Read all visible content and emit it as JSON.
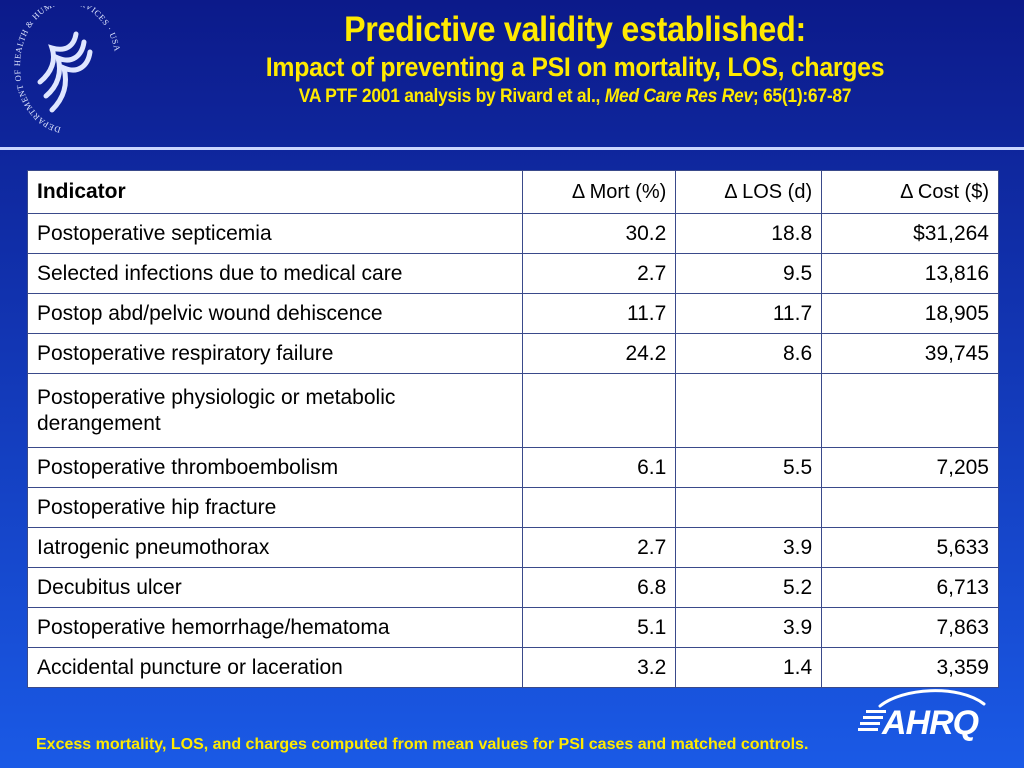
{
  "logos": {
    "seal_text": "DEPARTMENT OF HEALTH & HUMAN SERVICES · USA",
    "ahrq_text": "AHRQ"
  },
  "header": {
    "title": "Predictive validity established:",
    "subtitle": "Impact of preventing a PSI on mortality, LOS, charges",
    "citation_prefix": "VA PTF 2001 analysis by Rivard et al., ",
    "citation_journal": "Med Care Res Rev",
    "citation_suffix": "; 65(1):67-87"
  },
  "table": {
    "headers": [
      "Indicator",
      "Δ Mort (%)",
      "Δ LOS (d)",
      "Δ Cost ($)"
    ],
    "rows": [
      {
        "indicator": "Postoperative septicemia",
        "mort": "30.2",
        "los": "18.8",
        "cost": "$31,264"
      },
      {
        "indicator": "Selected infections due to medical care",
        "mort": "2.7",
        "los": "9.5",
        "cost": "13,816"
      },
      {
        "indicator": "Postop abd/pelvic wound dehiscence",
        "mort": "11.7",
        "los": "11.7",
        "cost": "18,905"
      },
      {
        "indicator": "Postoperative respiratory failure",
        "mort": "24.2",
        "los": "8.6",
        "cost": "39,745"
      },
      {
        "indicator": "Postoperative physiologic or metabolic derangement",
        "mort": "",
        "los": "",
        "cost": ""
      },
      {
        "indicator": "Postoperative thromboembolism",
        "mort": "6.1",
        "los": "5.5",
        "cost": "7,205"
      },
      {
        "indicator": "Postoperative hip fracture",
        "mort": "",
        "los": "",
        "cost": ""
      },
      {
        "indicator": "Iatrogenic pneumothorax",
        "mort": "2.7",
        "los": "3.9",
        "cost": "5,633"
      },
      {
        "indicator": "Decubitus ulcer",
        "mort": "6.8",
        "los": "5.2",
        "cost": "6,713"
      },
      {
        "indicator": "Postoperative hemorrhage/hematoma",
        "mort": "5.1",
        "los": "3.9",
        "cost": "7,863"
      },
      {
        "indicator": "Accidental puncture or laceration",
        "mort": "3.2",
        "los": "1.4",
        "cost": "3,359"
      }
    ]
  },
  "footnote": "Excess mortality, LOS, and charges computed from mean values for PSI cases and matched controls.",
  "colors": {
    "title": "#ffea00",
    "background_top": "#0c1a8a",
    "background_bottom": "#1a5ae6",
    "table_background": "#ffffff"
  }
}
